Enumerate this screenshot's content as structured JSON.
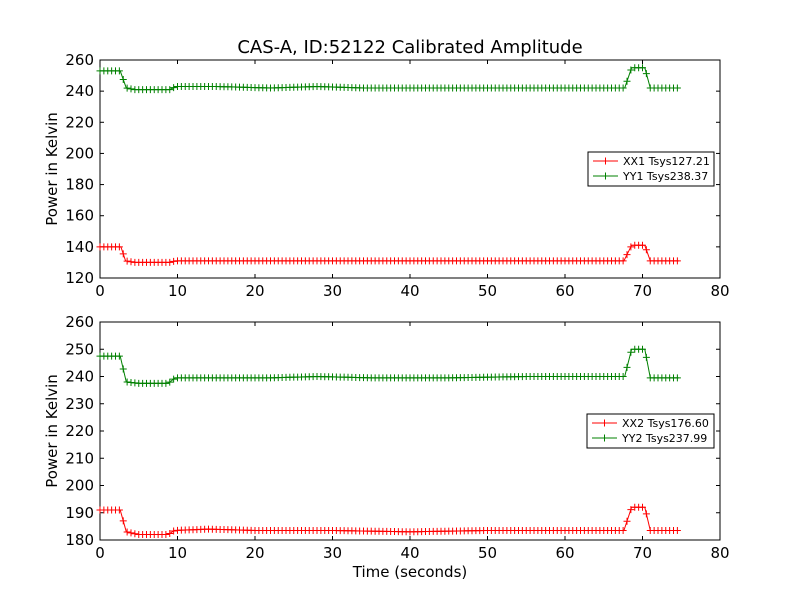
{
  "chart_data": [
    {
      "type": "line",
      "title": "CAS-A, ID:52122 Calibrated Amplitude",
      "xlabel": "",
      "ylabel": "Power in Kelvin",
      "xlim": [
        0,
        80
      ],
      "ylim": [
        120,
        260
      ],
      "xticks": [
        "0",
        "10",
        "20",
        "30",
        "40",
        "50",
        "60",
        "70",
        "80"
      ],
      "yticks": [
        "120",
        "140",
        "160",
        "180",
        "200",
        "220",
        "240",
        "260"
      ],
      "legend_position": "center-right",
      "marker": "+",
      "series": [
        {
          "name": "XX1 Tsys127.21",
          "color": "#ff0000",
          "points": [
            [
              0.0,
              140
            ],
            [
              2.7,
              140
            ],
            [
              3.3,
              131
            ],
            [
              4.5,
              130
            ],
            [
              9.0,
              130
            ],
            [
              9.7,
              131
            ],
            [
              15.0,
              131
            ],
            [
              30.0,
              131
            ],
            [
              45.0,
              131
            ],
            [
              60.0,
              131
            ],
            [
              67.6,
              131
            ],
            [
              68.6,
              141
            ],
            [
              70.3,
              141
            ],
            [
              71.0,
              131
            ],
            [
              74.7,
              131
            ]
          ]
        },
        {
          "name": "YY1 Tsys238.37",
          "color": "#008000",
          "points": [
            [
              0.0,
              253
            ],
            [
              2.6,
              253
            ],
            [
              3.4,
              242
            ],
            [
              4.5,
              241
            ],
            [
              9.0,
              241
            ],
            [
              9.8,
              243
            ],
            [
              15.0,
              243
            ],
            [
              22.0,
              242
            ],
            [
              28.0,
              243
            ],
            [
              34.0,
              242
            ],
            [
              45.0,
              242
            ],
            [
              55.0,
              242
            ],
            [
              62.0,
              242
            ],
            [
              67.7,
              242
            ],
            [
              68.6,
              255
            ],
            [
              70.3,
              255
            ],
            [
              71.0,
              242
            ],
            [
              74.7,
              242
            ]
          ]
        }
      ]
    },
    {
      "type": "line",
      "title": "",
      "xlabel": "Time (seconds)",
      "ylabel": "Power in Kelvin",
      "xlim": [
        0,
        80
      ],
      "ylim": [
        180,
        260
      ],
      "xticks": [
        "0",
        "10",
        "20",
        "30",
        "40",
        "50",
        "60",
        "70",
        "80"
      ],
      "yticks": [
        "180",
        "190",
        "200",
        "210",
        "220",
        "230",
        "240",
        "250",
        "260"
      ],
      "legend_position": "center-right",
      "marker": "+",
      "series": [
        {
          "name": "XX2 Tsys176.60",
          "color": "#ff0000",
          "points": [
            [
              0.0,
              191
            ],
            [
              2.6,
              191
            ],
            [
              3.4,
              183
            ],
            [
              5.0,
              182
            ],
            [
              8.8,
              182
            ],
            [
              9.6,
              183.5
            ],
            [
              14.0,
              184
            ],
            [
              20.0,
              183.5
            ],
            [
              30.0,
              183.5
            ],
            [
              40.0,
              183
            ],
            [
              50.0,
              183.5
            ],
            [
              60.0,
              183.5
            ],
            [
              67.6,
              183.5
            ],
            [
              68.6,
              192
            ],
            [
              70.3,
              192
            ],
            [
              71.0,
              183.5
            ],
            [
              74.7,
              183.5
            ]
          ]
        },
        {
          "name": "YY2 Tsys237.99",
          "color": "#008000",
          "points": [
            [
              0.0,
              247.5
            ],
            [
              2.6,
              247.5
            ],
            [
              3.4,
              238
            ],
            [
              5.0,
              237.5
            ],
            [
              8.8,
              237.5
            ],
            [
              9.7,
              239.5
            ],
            [
              15.0,
              239.5
            ],
            [
              22.0,
              239.5
            ],
            [
              28.0,
              240
            ],
            [
              35.0,
              239.5
            ],
            [
              45.0,
              239.5
            ],
            [
              55.0,
              240
            ],
            [
              62.0,
              240
            ],
            [
              67.7,
              240
            ],
            [
              68.6,
              250
            ],
            [
              70.3,
              250
            ],
            [
              71.0,
              239.5
            ],
            [
              74.7,
              239.5
            ]
          ]
        }
      ]
    }
  ]
}
